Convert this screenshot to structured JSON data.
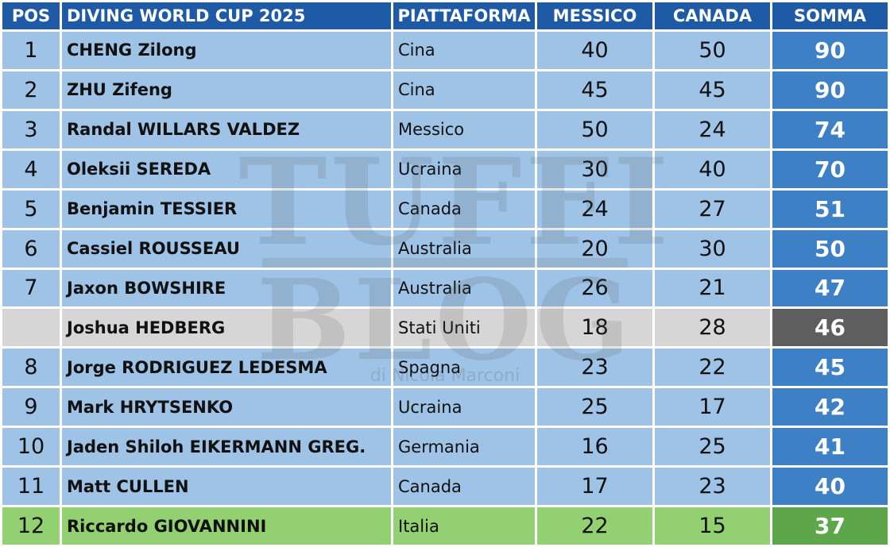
{
  "headers": {
    "pos": "POS",
    "event": "DIVING WORLD CUP 2025",
    "platform": "PIATTAFORMA",
    "mexico": "MESSICO",
    "canada": "CANADA",
    "sum": "SOMMA"
  },
  "rows": [
    {
      "pos": "1",
      "name": "CHENG Zilong",
      "nation": "Cina",
      "mexico": "40",
      "canada": "50",
      "sum": "90"
    },
    {
      "pos": "2",
      "name": "ZHU Zifeng",
      "nation": "Cina",
      "mexico": "45",
      "canada": "45",
      "sum": "90"
    },
    {
      "pos": "3",
      "name": "Randal WILLARS VALDEZ",
      "nation": "Messico",
      "mexico": "50",
      "canada": "24",
      "sum": "74"
    },
    {
      "pos": "4",
      "name": "Oleksii SEREDA",
      "nation": "Ucraina",
      "mexico": "30",
      "canada": "40",
      "sum": "70"
    },
    {
      "pos": "5",
      "name": "Benjamin TESSIER",
      "nation": "Canada",
      "mexico": "24",
      "canada": "27",
      "sum": "51"
    },
    {
      "pos": "6",
      "name": "Cassiel ROUSSEAU",
      "nation": "Australia",
      "mexico": "20",
      "canada": "30",
      "sum": "50"
    },
    {
      "pos": "7",
      "name": "Jaxon BOWSHIRE",
      "nation": "Australia",
      "mexico": "26",
      "canada": "21",
      "sum": "47"
    },
    {
      "pos": "",
      "name": "Joshua HEDBERG",
      "nation": "Stati Uniti",
      "mexico": "18",
      "canada": "28",
      "sum": "46"
    },
    {
      "pos": "8",
      "name": "Jorge RODRIGUEZ LEDESMA",
      "nation": "Spagna",
      "mexico": "23",
      "canada": "22",
      "sum": "45"
    },
    {
      "pos": "9",
      "name": "Mark HRYTSENKO",
      "nation": "Ucraina",
      "mexico": "25",
      "canada": "17",
      "sum": "42"
    },
    {
      "pos": "10",
      "name": "Jaden Shiloh EIKERMANN GREG.",
      "nation": "Germania",
      "mexico": "16",
      "canada": "25",
      "sum": "41"
    },
    {
      "pos": "11",
      "name": "Matt CULLEN",
      "nation": "Canada",
      "mexico": "17",
      "canada": "23",
      "sum": "40"
    },
    {
      "pos": "12",
      "name": "Riccardo GIOVANNINI",
      "nation": "Italia",
      "mexico": "22",
      "canada": "15",
      "sum": "37"
    }
  ],
  "watermark": {
    "line1": "TUFFI",
    "line2": "BLOG",
    "sub": "di Nicola Marconi"
  },
  "colors": {
    "header": "#1f5aa6",
    "row": "#9ec3e6",
    "sum": "#3d80c6",
    "excluded_row": "#d6d6d6",
    "excluded_sum": "#5e5e5e",
    "highlight_row": "#93d071",
    "highlight_sum": "#5ea64a"
  }
}
